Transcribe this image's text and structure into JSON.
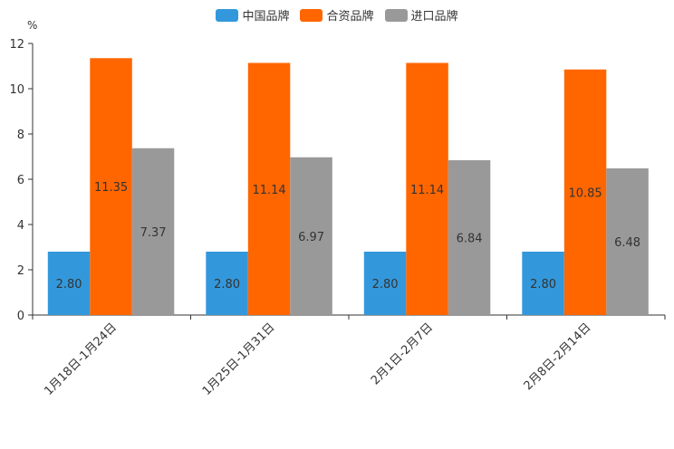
{
  "chart_data": {
    "type": "bar",
    "unit": "%",
    "categories": [
      "1月18日-1月24日",
      "1月25日-1月31日",
      "2月1日-2月7日",
      "2月8日-2月14日"
    ],
    "series": [
      {
        "name": "中国品牌",
        "color": "#3398DB",
        "values": [
          2.8,
          2.8,
          2.8,
          2.8
        ],
        "labels": [
          "2.80",
          "2.80",
          "2.80",
          "2.80"
        ]
      },
      {
        "name": "合资品牌",
        "color": "#FF6600",
        "values": [
          11.35,
          11.14,
          11.14,
          10.85
        ],
        "labels": [
          "11.35",
          "11.14",
          "11.14",
          "10.85"
        ]
      },
      {
        "name": "进口品牌",
        "color": "#999999",
        "values": [
          7.37,
          6.97,
          6.84,
          6.48
        ],
        "labels": [
          "7.37",
          "6.97",
          "6.84",
          "6.48"
        ]
      }
    ],
    "ylim": [
      0,
      12
    ],
    "yticks": [
      0,
      2,
      4,
      6,
      8,
      10,
      12
    ],
    "legend_position": "top-center",
    "grid": false
  }
}
